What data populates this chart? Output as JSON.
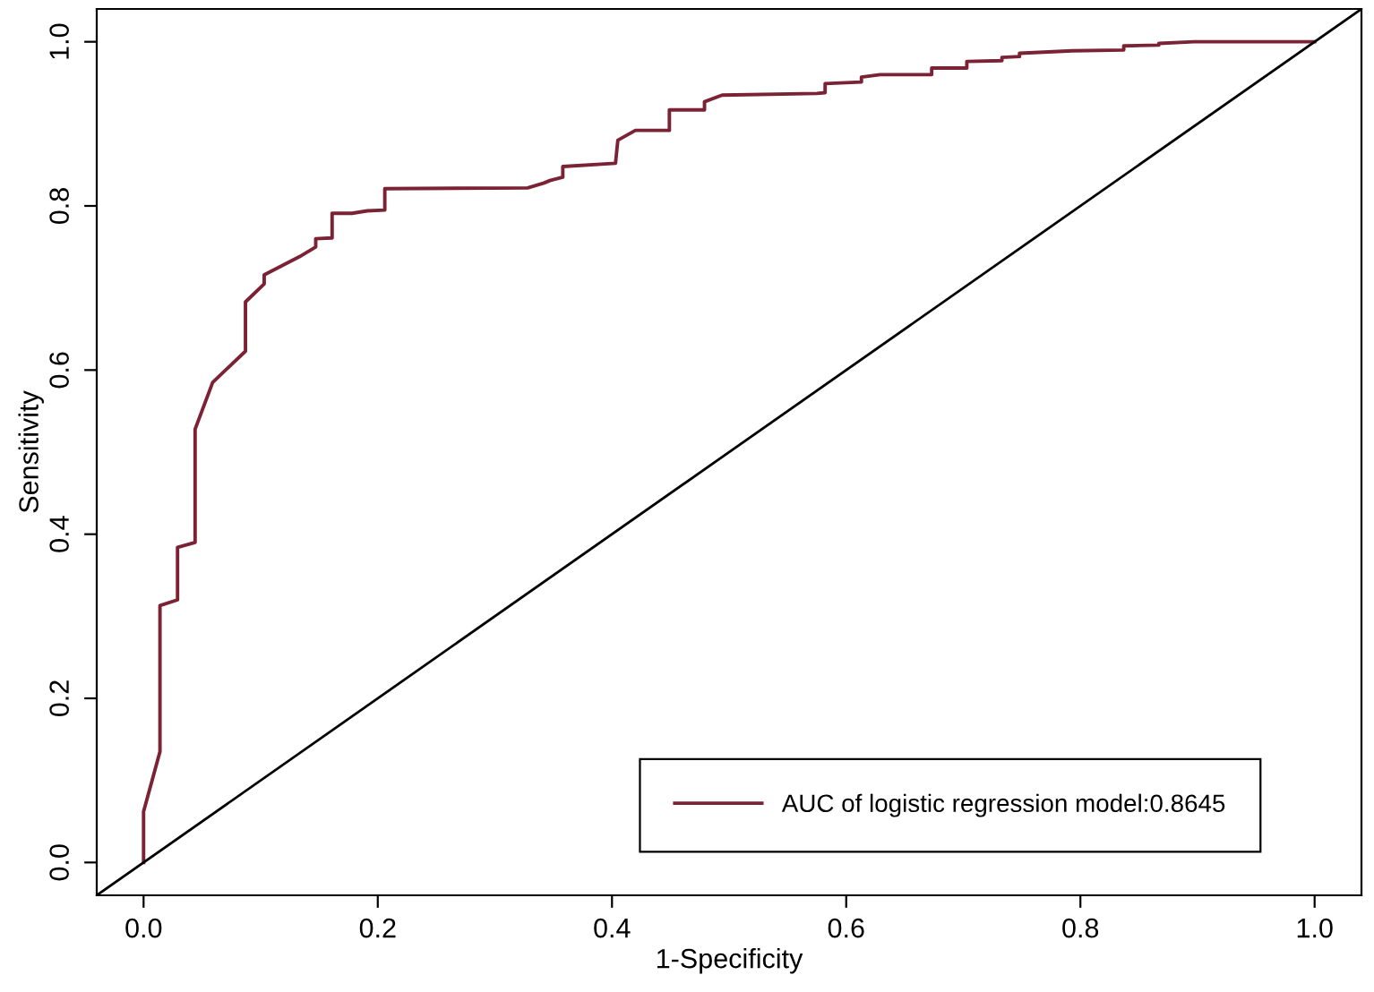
{
  "chart_data": {
    "type": "line",
    "xlabel": "1-Specificity",
    "ylabel": "Sensitivity",
    "xlim": [
      -0.04,
      1.04
    ],
    "ylim": [
      -0.04,
      1.04
    ],
    "xticks": [
      {
        "value": 0,
        "label": "0.0"
      },
      {
        "value": 0.2,
        "label": "0.2"
      },
      {
        "value": 0.4,
        "label": "0.4"
      },
      {
        "value": 0.6,
        "label": "0.6"
      },
      {
        "value": 0.8,
        "label": "0.8"
      },
      {
        "value": 1,
        "label": "1.0"
      }
    ],
    "yticks": [
      {
        "value": 0,
        "label": "0.0"
      },
      {
        "value": 0.2,
        "label": "0.2"
      },
      {
        "value": 0.4,
        "label": "0.4"
      },
      {
        "value": 0.6,
        "label": "0.6"
      },
      {
        "value": 0.8,
        "label": "0.8"
      },
      {
        "value": 1,
        "label": "1.0"
      }
    ],
    "grid": false,
    "legend": "bottom right",
    "marker": "none",
    "line_style": "solid",
    "series": [
      {
        "name": "AUC of logistic regression model:0.8645",
        "color": "#7b2335",
        "x": [
          0,
          0,
          0.014,
          0.014,
          0.029,
          0.029,
          0.044,
          0.044,
          0.059,
          0.087,
          0.087,
          0.103,
          0.103,
          0.133,
          0.147,
          0.147,
          0.161,
          0.161,
          0.178,
          0.191,
          0.206,
          0.206,
          0.328,
          0.342,
          0.347,
          0.358,
          0.358,
          0.403,
          0.405,
          0.42,
          0.449,
          0.449,
          0.479,
          0.479,
          0.494,
          0.575,
          0.582,
          0.582,
          0.613,
          0.613,
          0.629,
          0.673,
          0.673,
          0.703,
          0.703,
          0.733,
          0.733,
          0.748,
          0.748,
          0.793,
          0.837,
          0.837,
          0.867,
          0.867,
          0.897,
          1.0
        ],
        "values": [
          0,
          0.062,
          0.135,
          0.313,
          0.32,
          0.384,
          0.39,
          0.528,
          0.585,
          0.623,
          0.683,
          0.705,
          0.716,
          0.738,
          0.75,
          0.76,
          0.761,
          0.791,
          0.791,
          0.794,
          0.795,
          0.821,
          0.822,
          0.828,
          0.831,
          0.835,
          0.848,
          0.852,
          0.88,
          0.892,
          0.892,
          0.917,
          0.917,
          0.927,
          0.935,
          0.937,
          0.938,
          0.949,
          0.951,
          0.957,
          0.96,
          0.96,
          0.968,
          0.968,
          0.976,
          0.977,
          0.981,
          0.982,
          0.986,
          0.989,
          0.99,
          0.995,
          0.996,
          0.998,
          1.0,
          1.0
        ]
      },
      {
        "color": "#000000",
        "x": [
          -0.04,
          1.04
        ],
        "values": [
          -0.04,
          1.04
        ]
      }
    ]
  }
}
